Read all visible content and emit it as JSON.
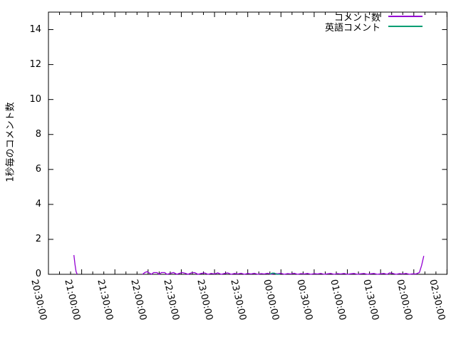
{
  "chart_data": {
    "type": "line",
    "title": "",
    "xlabel": "",
    "ylabel": "1秒毎のコメント数",
    "ylim": [
      0,
      15
    ],
    "yticks": [
      0,
      2,
      4,
      6,
      8,
      10,
      12,
      14
    ],
    "x_range_minutes": [
      0,
      360
    ],
    "xtick_interval_minutes": 30,
    "minor_xtick_interval_minutes": 10,
    "xtick_labels": [
      "20:30:00",
      "21:00:00",
      "21:30:00",
      "22:00:00",
      "22:30:00",
      "23:00:00",
      "23:30:00",
      "00:00:00",
      "00:30:00",
      "01:00:00",
      "01:30:00",
      "02:00:00",
      "02:30:00"
    ],
    "grid": false,
    "legend_position": "top-right-inside",
    "background_color": "#ffffff",
    "border_color": "#000000",
    "series": [
      {
        "name": "コメント数",
        "color": "#9400d3",
        "segments": [
          [
            [
              23,
              1.1
            ],
            [
              24,
              0.55
            ],
            [
              25,
              0.15
            ],
            [
              26,
              0
            ]
          ],
          [
            [
              85,
              0
            ],
            [
              87,
              0.1
            ],
            [
              89,
              0.15
            ],
            [
              91,
              0.08
            ],
            [
              93,
              0
            ],
            [
              95,
              0.1
            ],
            [
              98,
              0.1
            ],
            [
              100,
              0
            ],
            [
              102,
              0.1
            ],
            [
              105,
              0.1
            ],
            [
              107,
              0
            ],
            [
              110,
              0.05
            ],
            [
              113,
              0.1
            ],
            [
              116,
              0
            ],
            [
              118,
              0.05
            ],
            [
              121,
              0.1
            ],
            [
              124,
              0.05
            ],
            [
              126,
              0
            ],
            [
              129,
              0.08
            ],
            [
              132,
              0.1
            ],
            [
              135,
              0
            ],
            [
              138,
              0.05
            ],
            [
              141,
              0.08
            ],
            [
              144,
              0
            ],
            [
              147,
              0.05
            ],
            [
              150,
              0.02
            ],
            [
              153,
              0.08
            ],
            [
              156,
              0
            ],
            [
              159,
              0.05
            ],
            [
              162,
              0.08
            ],
            [
              165,
              0
            ],
            [
              168,
              0.05
            ],
            [
              171,
              0.02
            ],
            [
              174,
              0.06
            ],
            [
              177,
              0
            ],
            [
              180,
              0.05
            ],
            [
              183,
              0.02
            ],
            [
              186,
              0.06
            ],
            [
              189,
              0
            ],
            [
              192,
              0.04
            ],
            [
              195,
              0.02
            ],
            [
              198,
              0.06
            ],
            [
              201,
              0
            ],
            [
              204,
              0.05
            ],
            [
              207,
              0.03
            ],
            [
              210,
              0.06
            ],
            [
              213,
              0
            ],
            [
              216,
              0.04
            ],
            [
              219,
              0.02
            ],
            [
              222,
              0.06
            ],
            [
              225,
              0
            ],
            [
              228,
              0.04
            ],
            [
              231,
              0.02
            ],
            [
              234,
              0.05
            ],
            [
              237,
              0
            ],
            [
              240,
              0.04
            ],
            [
              243,
              0.02
            ],
            [
              246,
              0.05
            ],
            [
              249,
              0
            ],
            [
              252,
              0.03
            ],
            [
              255,
              0.05
            ],
            [
              258,
              0
            ],
            [
              261,
              0.04
            ],
            [
              264,
              0.02
            ],
            [
              267,
              0.05
            ],
            [
              270,
              0
            ],
            [
              273,
              0.03
            ],
            [
              276,
              0.05
            ],
            [
              279,
              0
            ],
            [
              282,
              0.03
            ],
            [
              285,
              0.05
            ],
            [
              288,
              0
            ],
            [
              291,
              0.03
            ],
            [
              294,
              0.05
            ],
            [
              297,
              0
            ],
            [
              300,
              0.03
            ],
            [
              303,
              0.05
            ],
            [
              306,
              0
            ],
            [
              308,
              0.08
            ],
            [
              311,
              0.05
            ],
            [
              314,
              0
            ],
            [
              317,
              0.04
            ],
            [
              320,
              0.02
            ],
            [
              323,
              0.05
            ],
            [
              326,
              0
            ],
            [
              329,
              0.03
            ],
            [
              332,
              0.02
            ],
            [
              335,
              0.1
            ],
            [
              337,
              0.5
            ],
            [
              339,
              1.05
            ]
          ]
        ]
      },
      {
        "name": "英語コメント",
        "color": "#009e73",
        "segments": [
          [
            [
              200,
              0
            ],
            [
              202,
              0.07
            ],
            [
              204,
              0.07
            ],
            [
              206,
              0
            ],
            [
              209,
              0
            ]
          ]
        ]
      }
    ]
  }
}
